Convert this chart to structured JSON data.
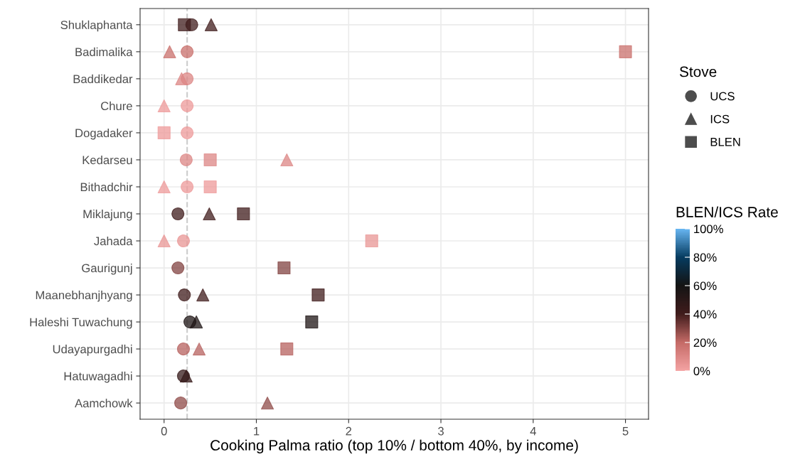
{
  "chart_data": {
    "type": "scatter",
    "orientation": "horizontal",
    "xlabel": "Cooking Palma ratio (top 10% / bottom 40%, by income)",
    "categories": [
      "Shuklaphanta",
      "Badimalika",
      "Baddikedar",
      "Chure",
      "Dogadaker",
      "Kedarseu",
      "Bithadchir",
      "Miklajung",
      "Jahada",
      "Gaurigunj",
      "Maanebhanjhyang",
      "Haleshi Tuwachung",
      "Udayapurgadhi",
      "Hatuwagadhi",
      "Aamchowk"
    ],
    "series": [
      {
        "name": "UCS",
        "marker": "circle",
        "colors": [
          "#401c1c",
          "#c9706c",
          "#dc8684",
          "#ed9a9a",
          "#ed9a9a",
          "#dc8684",
          "#ed9a9a",
          "#401c1c",
          "#e89594",
          "#824341",
          "#401c1c",
          "#1f1616",
          "#b7625f",
          "#351a1a",
          "#8f4b48"
        ],
        "values": [
          0.3,
          0.25,
          0.25,
          0.25,
          0.25,
          0.24,
          0.25,
          0.15,
          0.21,
          0.15,
          0.22,
          0.28,
          0.21,
          0.21,
          0.18
        ],
        "cvalues": [
          40,
          18,
          10,
          3,
          3,
          10,
          3,
          40,
          5,
          30,
          40,
          55,
          22,
          45,
          28
        ]
      },
      {
        "name": "ICS",
        "marker": "triangle",
        "colors": [
          "#401c1c",
          "#c9706c",
          "#dc8684",
          "#ed9a9a",
          null,
          "#dc8684",
          "#ed9a9a",
          "#401c1c",
          "#e89594",
          null,
          "#401c1c",
          "#1f1616",
          "#b7625f",
          "#351a1a",
          "#8f4b48"
        ],
        "values": [
          0.51,
          0.06,
          0.19,
          0,
          null,
          1.33,
          0,
          0.49,
          0,
          null,
          0.42,
          0.35,
          0.38,
          0.24,
          1.12
        ],
        "cvalues": [
          40,
          18,
          10,
          3,
          null,
          10,
          3,
          40,
          5,
          null,
          40,
          55,
          22,
          45,
          28
        ]
      },
      {
        "name": "BLEN",
        "marker": "square",
        "colors": [
          "#401c1c",
          "#c9706c",
          null,
          null,
          "#ed9a9a",
          "#dc8684",
          "#ed9a9a",
          "#401c1c",
          "#e89594",
          "#824341",
          "#401c1c",
          "#1f1616",
          "#b7625f",
          null,
          null
        ],
        "values": [
          0.22,
          5.0,
          null,
          null,
          0,
          0.5,
          0.5,
          0.86,
          2.25,
          1.3,
          1.67,
          1.6,
          1.33,
          null,
          null
        ],
        "cvalues": [
          40,
          18,
          null,
          null,
          3,
          10,
          3,
          40,
          5,
          30,
          40,
          55,
          22,
          null,
          null
        ]
      }
    ],
    "legend_title": "Stove",
    "legend": "right",
    "clabel": "BLEN/ICS Rate",
    "clim": [
      0,
      100
    ],
    "cticks": [
      {
        "value": 0,
        "label": "0%"
      },
      {
        "value": 20,
        "label": "20%"
      },
      {
        "value": 40,
        "label": "40%"
      },
      {
        "value": 60,
        "label": "60%"
      },
      {
        "value": 80,
        "label": "80%"
      },
      {
        "value": 100,
        "label": "100%"
      }
    ],
    "xlim": [
      -0.26,
      5.25
    ],
    "xticks": [
      0,
      1,
      2,
      3,
      4,
      5
    ],
    "ref_lines": [
      {
        "axis": "x",
        "value": 0.25,
        "color": "#cccccc",
        "line_style": "dashed"
      }
    ],
    "grid": true
  }
}
